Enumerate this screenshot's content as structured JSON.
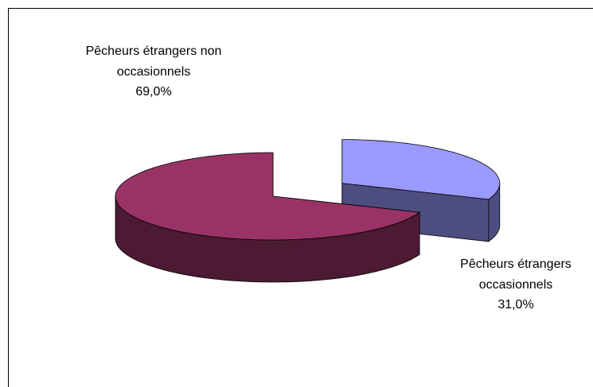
{
  "chart_data": {
    "type": "pie3d",
    "categories": [
      "Pêcheurs étrangers occasionnels",
      "Pêcheurs étrangers non occasionnels"
    ],
    "values": [
      31.0,
      69.0
    ],
    "value_labels": [
      "31,0%",
      "69,0%"
    ],
    "colors": [
      "#9999ff",
      "#993366"
    ]
  }
}
